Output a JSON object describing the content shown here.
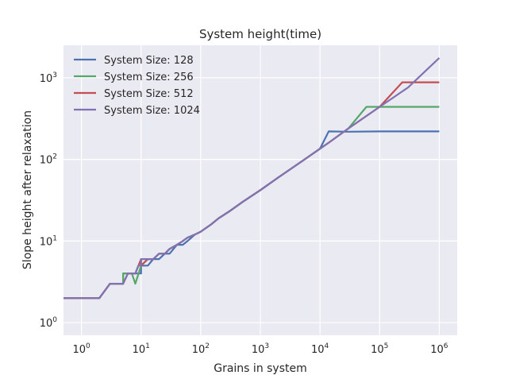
{
  "chart_data": {
    "type": "line",
    "title": "System height(time)",
    "xlabel": "Grains in system",
    "ylabel": "Slope height after relaxation",
    "xscale": "log",
    "yscale": "log",
    "xlim": [
      0.5,
      2000000
    ],
    "ylim": [
      0.7,
      2500
    ],
    "grid": true,
    "legend_position": "top-left",
    "background": "#eaeaf2",
    "grid_color": "#ffffff",
    "x_ticks": [
      {
        "value": 1,
        "base": "10",
        "exp": "0"
      },
      {
        "value": 10,
        "base": "10",
        "exp": "1"
      },
      {
        "value": 100,
        "base": "10",
        "exp": "2"
      },
      {
        "value": 1000,
        "base": "10",
        "exp": "3"
      },
      {
        "value": 10000,
        "base": "10",
        "exp": "4"
      },
      {
        "value": 100000,
        "base": "10",
        "exp": "5"
      },
      {
        "value": 1000000,
        "base": "10",
        "exp": "6"
      }
    ],
    "y_ticks": [
      {
        "value": 1,
        "base": "10",
        "exp": "0"
      },
      {
        "value": 10,
        "base": "10",
        "exp": "1"
      },
      {
        "value": 100,
        "base": "10",
        "exp": "2"
      },
      {
        "value": 1000,
        "base": "10",
        "exp": "3"
      }
    ],
    "series": [
      {
        "name": "System Size: 128",
        "color": "#4c72b0",
        "x": [
          0.5,
          2,
          3,
          5,
          5,
          6,
          8,
          10,
          10,
          13,
          16,
          20,
          25,
          30,
          40,
          50,
          60,
          80,
          100,
          150,
          200,
          300,
          500,
          1000,
          2000,
          5000,
          10000,
          14000,
          30000,
          100000,
          300000,
          1000000
        ],
        "y": [
          2,
          2,
          3,
          3,
          4,
          4,
          4,
          4,
          5,
          5,
          6,
          6,
          7,
          7,
          9,
          9,
          10,
          12,
          13,
          16,
          19,
          23,
          30,
          42,
          60,
          95,
          135,
          220,
          218,
          220,
          220,
          220
        ]
      },
      {
        "name": "System Size: 256",
        "color": "#55a868",
        "x": [
          0.5,
          2,
          3,
          5,
          5,
          7,
          8,
          10,
          10,
          13,
          16,
          20,
          25,
          30,
          40,
          50,
          60,
          80,
          100,
          150,
          200,
          300,
          500,
          1000,
          2000,
          5000,
          10000,
          14000,
          30000,
          60000,
          100000,
          300000,
          1000000
        ],
        "y": [
          2,
          2,
          3,
          3,
          4,
          4,
          3,
          5,
          5,
          6,
          6,
          7,
          7,
          8,
          9,
          10,
          11,
          12,
          13,
          16,
          19,
          23,
          30,
          42,
          60,
          95,
          135,
          160,
          240,
          440,
          440,
          440,
          440
        ]
      },
      {
        "name": "System Size: 512",
        "color": "#c44e52",
        "x": [
          0.5,
          2,
          3,
          5,
          6,
          7,
          8,
          10,
          10,
          13,
          16,
          20,
          25,
          30,
          40,
          50,
          60,
          80,
          100,
          150,
          200,
          300,
          500,
          1000,
          2000,
          5000,
          10000,
          14000,
          30000,
          60000,
          100000,
          240000,
          300000,
          1000000
        ],
        "y": [
          2,
          2,
          3,
          3,
          4,
          4,
          4,
          6,
          5,
          6,
          6,
          7,
          7,
          8,
          9,
          10,
          11,
          12,
          13,
          16,
          19,
          23,
          30,
          42,
          60,
          95,
          135,
          160,
          240,
          340,
          440,
          880,
          880,
          880
        ]
      },
      {
        "name": "System Size: 1024",
        "color": "#8172b2",
        "x": [
          0.5,
          2,
          3,
          5,
          6,
          8,
          9,
          10,
          10,
          13,
          16,
          20,
          25,
          30,
          40,
          50,
          60,
          80,
          100,
          150,
          200,
          300,
          500,
          1000,
          2000,
          5000,
          10000,
          14000,
          30000,
          60000,
          100000,
          300000,
          1000000
        ],
        "y": [
          2,
          2,
          3,
          3,
          4,
          4,
          5,
          5,
          6,
          6,
          6,
          7,
          7,
          8,
          9,
          10,
          11,
          12,
          13,
          16,
          19,
          23,
          30,
          42,
          60,
          95,
          135,
          160,
          240,
          340,
          440,
          760,
          1750
        ]
      }
    ]
  }
}
